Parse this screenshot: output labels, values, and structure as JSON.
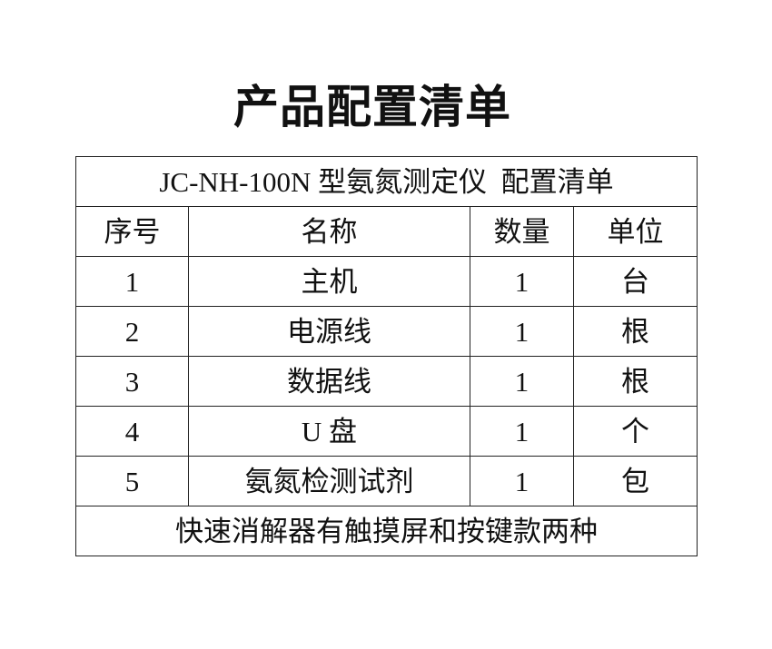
{
  "page_title": "产品配置清单",
  "table": {
    "caption": "JC-NH-100N 型氨氮测定仪  配置清单",
    "headers": [
      "序号",
      "名称",
      "数量",
      "单位"
    ],
    "rows": [
      [
        "1",
        "主机",
        "1",
        "台"
      ],
      [
        "2",
        "电源线",
        "1",
        "根"
      ],
      [
        "3",
        "数据线",
        "1",
        "根"
      ],
      [
        "4",
        "U 盘",
        "1",
        "个"
      ],
      [
        "5",
        "氨氮检测试剂",
        "1",
        "包"
      ]
    ],
    "footer": "快速消解器有触摸屏和按键款两种"
  }
}
